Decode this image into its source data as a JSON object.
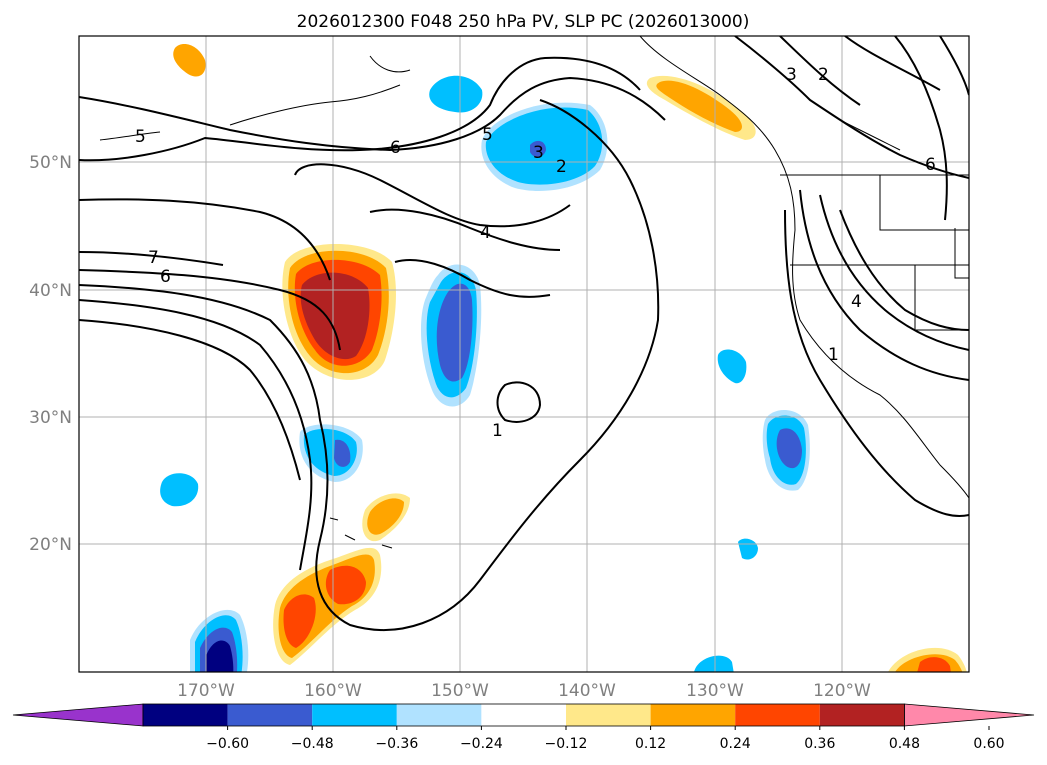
{
  "title": "2026012300 F048 250 hPa PV, SLP PC (2026013000)",
  "lat_labels": [
    "50°N",
    "40°N",
    "30°N",
    "20°N"
  ],
  "lon_labels": [
    "170°W",
    "160°W",
    "150°W",
    "140°W",
    "130°W",
    "120°W"
  ],
  "colorbar": {
    "ticks": [
      "−0.60",
      "−0.48",
      "−0.36",
      "−0.24",
      "−0.12",
      "0.12",
      "0.24",
      "0.36",
      "0.48",
      "0.60"
    ],
    "colors": [
      "#9933cc",
      "#000080",
      "#3a5bd0",
      "#00bfff",
      "#b0e2ff",
      "#ffffff",
      "#ffe88a",
      "#ffa500",
      "#ff4500",
      "#b22222",
      "#ff88aa"
    ]
  },
  "contour_labels": [
    "5",
    "6",
    "7",
    "6",
    "4",
    "5",
    "3",
    "2",
    "1",
    "2",
    "3",
    "6",
    "4",
    "1"
  ]
}
